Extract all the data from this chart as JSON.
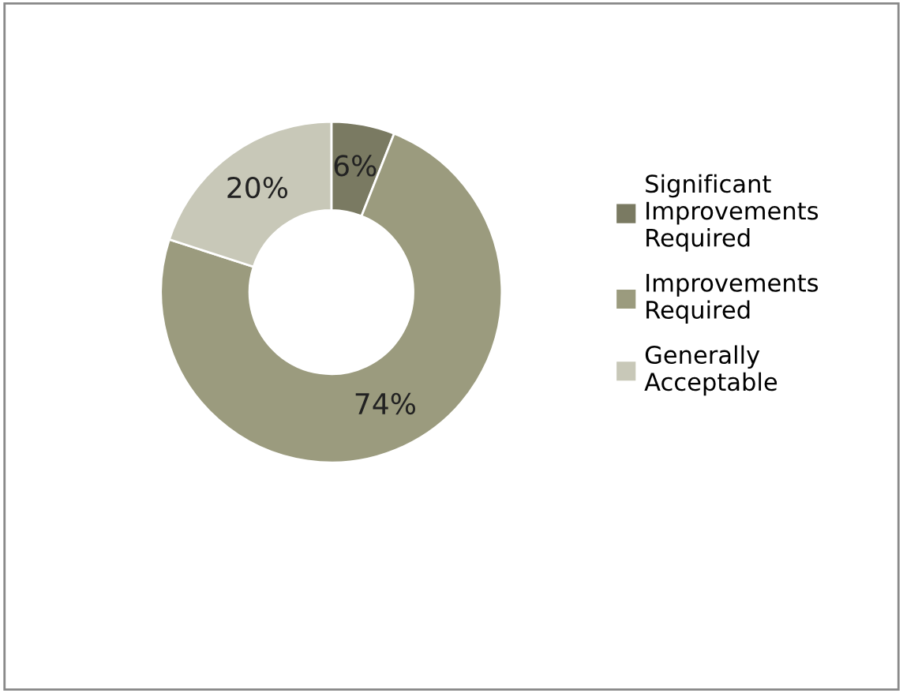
{
  "chart_data": {
    "type": "donut",
    "categories": [
      "Significant Improvements Required",
      "Improvements Required",
      "Generally Acceptable"
    ],
    "values": [
      6,
      74,
      20
    ],
    "value_labels": [
      "6%",
      "74%",
      "20%"
    ],
    "colors": [
      "#7a7a62",
      "#9b9b7e",
      "#c8c8b8"
    ],
    "legend": "right"
  }
}
